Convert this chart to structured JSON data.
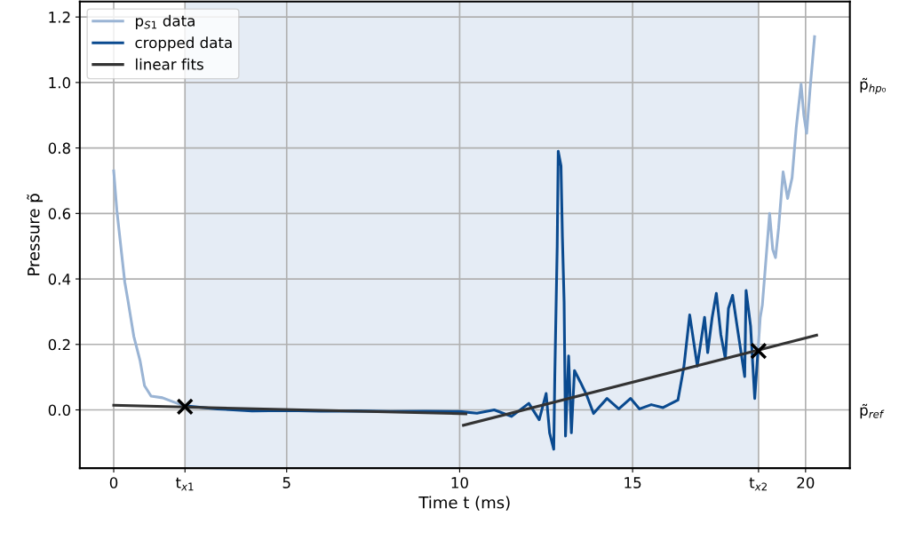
{
  "chart_data": {
    "type": "line",
    "xlabel": "Time t (ms)",
    "ylabel": "Pressure p̃",
    "xlim": [
      -0.98,
      21.28
    ],
    "ylim": [
      -0.178,
      1.247
    ],
    "xticks": [
      0,
      {
        "value": 2.06,
        "label": "t$_{x1}$"
      },
      5,
      10,
      15,
      {
        "value": 18.64,
        "label": "t$_{x2}$"
      },
      20
    ],
    "yticks": [
      {
        "value": 0,
        "label": "0.0"
      },
      {
        "value": 0.2,
        "label": "0.2"
      },
      {
        "value": 0.4,
        "label": "0.4"
      },
      {
        "value": 0.6,
        "label": "0.6"
      },
      {
        "value": 0.8,
        "label": "0.8"
      },
      {
        "value": 1.0,
        "label": "1.0"
      },
      {
        "value": 1.2,
        "label": "1.2"
      }
    ],
    "annotations": [
      "p̃$_{hp₀}$",
      "p̃$_{ref}$"
    ],
    "grid": true,
    "legend": "top left",
    "bands": [
      {
        "axis": "x",
        "from": 2.06,
        "to": 18.64,
        "color": "#e5ecf5"
      }
    ],
    "series": [
      {
        "name": "p$_{S1}$ data",
        "color": "#9ab4d4",
        "x": [
          0,
          0.09,
          0.32,
          0.41,
          0.58,
          0.76,
          0.89,
          1.08,
          1.41,
          1.63,
          1.89,
          2.06,
          10,
          18.62,
          18.69,
          18.75,
          18.84,
          18.96,
          19.05,
          19.13,
          19.22,
          19.35,
          19.48,
          19.61,
          19.73,
          19.87,
          19.95,
          20.03,
          20.13,
          20.26
        ],
        "values": [
          0.73,
          0.61,
          0.39,
          0.335,
          0.225,
          0.151,
          0.074,
          0.042,
          0.037,
          0.028,
          0.018,
          0.01,
          null,
          0.175,
          0.283,
          0.32,
          0.44,
          0.6,
          0.49,
          0.465,
          0.555,
          0.727,
          0.646,
          0.709,
          0.863,
          0.995,
          0.9,
          0.845,
          0.98,
          1.14
        ]
      },
      {
        "name": "cropped data",
        "color": "#0a4a8f",
        "x": [
          2.1,
          3,
          4,
          5,
          6,
          7,
          8,
          9,
          10,
          10.5,
          11,
          11.5,
          12,
          12.3,
          12.5,
          12.6,
          12.72,
          12.75,
          12.82,
          12.85,
          12.93,
          12.97,
          13.02,
          13.06,
          13.15,
          13.23,
          13.32,
          13.49,
          13.66,
          13.87,
          14.26,
          14.6,
          14.94,
          15.2,
          15.54,
          15.88,
          16.31,
          16.48,
          16.65,
          16.87,
          17.08,
          17.17,
          17.3,
          17.42,
          17.55,
          17.68,
          17.77,
          17.89,
          18.02,
          18.24,
          18.28,
          18.41,
          18.53,
          18.62
        ],
        "values": [
          0.012,
          0.003,
          -0.003,
          -0.002,
          -0.004,
          -0.003,
          -0.005,
          -0.004,
          -0.005,
          -0.01,
          0.0,
          -0.02,
          0.02,
          -0.03,
          0.05,
          -0.07,
          -0.12,
          0.1,
          0.5,
          0.79,
          0.745,
          0.53,
          0.33,
          -0.08,
          0.165,
          -0.07,
          0.12,
          0.085,
          0.048,
          -0.011,
          0.035,
          0.003,
          0.035,
          0.003,
          0.016,
          0.007,
          0.03,
          0.13,
          0.29,
          0.134,
          0.283,
          0.175,
          0.283,
          0.356,
          0.23,
          0.157,
          0.31,
          0.35,
          0.256,
          0.102,
          0.365,
          0.256,
          0.035,
          0.175
        ]
      },
      {
        "name": "linear fits",
        "color": "#333333",
        "x": [
          0,
          10.18
        ],
        "values": [
          0.014,
          -0.012
        ]
      },
      {
        "color": "#333333",
        "x": [
          10.11,
          20.32
        ],
        "values": [
          -0.047,
          0.228
        ]
      },
      {
        "type": "scatter",
        "marker": "cross",
        "color": "#000000",
        "x": [
          2.06,
          18.64
        ],
        "values": [
          0.01,
          0.18
        ]
      }
    ]
  }
}
